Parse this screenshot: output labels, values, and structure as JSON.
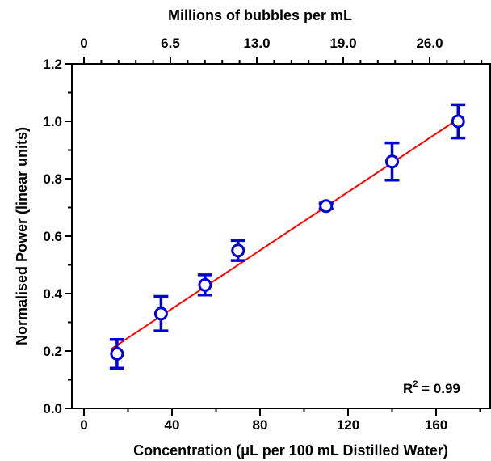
{
  "chart_data": {
    "type": "scatter",
    "xlabel": "Concentration (μL per 100 mL Distilled Water)",
    "ylabel": "Normalised Power (linear units)",
    "top_xlabel": "Millions of bubbles per mL",
    "xlim": [
      0,
      185
    ],
    "ylim": [
      0,
      1.2
    ],
    "x_ticks": [
      "0",
      "40",
      "80",
      "120",
      "160"
    ],
    "y_ticks": [
      "0.0",
      "0.2",
      "0.4",
      "0.6",
      "0.8",
      "1.0",
      "1.2"
    ],
    "top_x_ticks": [
      "0",
      "6.5",
      "13.0",
      "19.0",
      "26.0"
    ],
    "grid": false,
    "series": [
      {
        "color": "#0000dd",
        "marker": "open-circle",
        "x": [
          15,
          35,
          55,
          70,
          110,
          140,
          170
        ],
        "y": [
          0.19,
          0.33,
          0.43,
          0.55,
          0.705,
          0.86,
          1.0
        ],
        "error": [
          0.05,
          0.06,
          0.035,
          0.035,
          0.01,
          0.065,
          0.058
        ]
      }
    ],
    "fit_line": {
      "color": "#ff0000",
      "x": [
        12,
        172
      ],
      "y": [
        0.205,
        1.018
      ]
    },
    "annotation": {
      "r2_base": "R",
      "r2_sup": "2",
      "r2_value": " = 0.99"
    }
  }
}
